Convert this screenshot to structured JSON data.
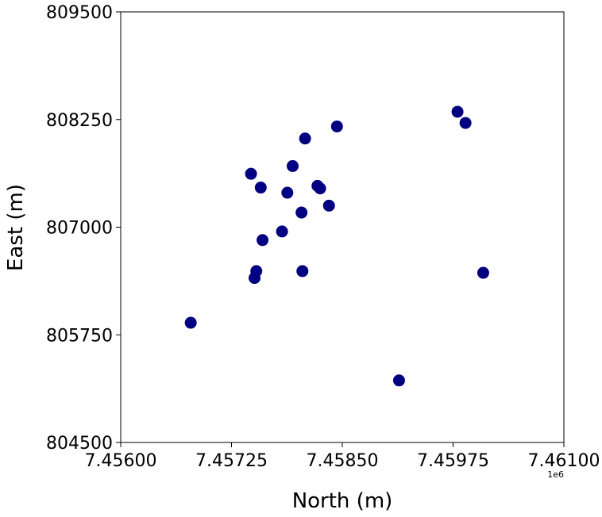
{
  "chart_data": {
    "type": "scatter",
    "xlabel": "North (m)",
    "ylabel": "East (m)",
    "x_offset_label": "1e6",
    "xlim": [
      7456000,
      7461000
    ],
    "ylim": [
      804500,
      809500
    ],
    "x_ticks": [
      7456000,
      7457250,
      7458500,
      7459750,
      7461000
    ],
    "x_tick_labels": [
      "7.45600",
      "7.45725",
      "7.45850",
      "7.45975",
      "7.46100"
    ],
    "y_ticks": [
      804500,
      805750,
      807000,
      808250,
      809500
    ],
    "y_tick_labels": [
      "804500",
      "805750",
      "807000",
      "808250",
      "809500"
    ],
    "marker_color": "#000080",
    "grid": false,
    "points": [
      {
        "x": 7456790,
        "y": 805890
      },
      {
        "x": 7457510,
        "y": 806410
      },
      {
        "x": 7457530,
        "y": 806490
      },
      {
        "x": 7457470,
        "y": 807620
      },
      {
        "x": 7457580,
        "y": 807460
      },
      {
        "x": 7457600,
        "y": 806850
      },
      {
        "x": 7457820,
        "y": 806950
      },
      {
        "x": 7457880,
        "y": 807400
      },
      {
        "x": 7457940,
        "y": 807710
      },
      {
        "x": 7458040,
        "y": 807170
      },
      {
        "x": 7458080,
        "y": 808030
      },
      {
        "x": 7458050,
        "y": 806490
      },
      {
        "x": 7458220,
        "y": 807480
      },
      {
        "x": 7458250,
        "y": 807450
      },
      {
        "x": 7458350,
        "y": 807250
      },
      {
        "x": 7458440,
        "y": 808170
      },
      {
        "x": 7459140,
        "y": 805220
      },
      {
        "x": 7459800,
        "y": 808340
      },
      {
        "x": 7459890,
        "y": 808210
      },
      {
        "x": 7460090,
        "y": 806470
      }
    ]
  }
}
